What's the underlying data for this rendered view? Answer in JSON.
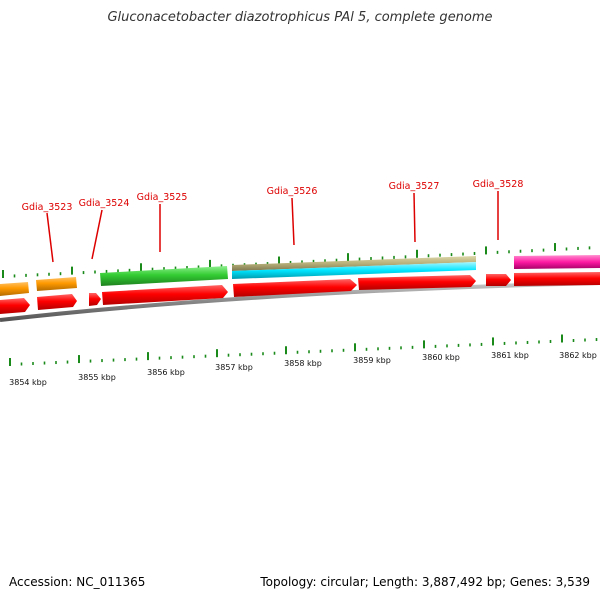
{
  "title": "Gluconacetobacter diazotrophicus PAl 5, complete genome",
  "footer": {
    "accession": "Accession: NC_011365",
    "summary": "Topology: circular; Length: 3,887,492 bp; Genes: 3,539"
  },
  "gene_labels": [
    "Gdia_3523",
    "Gdia_3524",
    "Gdia_3525",
    "Gdia_3526",
    "Gdia_3527",
    "Gdia_3528"
  ],
  "kbp_labels": [
    "3854 kbp",
    "3855 kbp",
    "3856 kbp",
    "3857 kbp",
    "3858 kbp",
    "3859 kbp",
    "3860 kbp",
    "3861 kbp",
    "3862 kbp"
  ],
  "colors": {
    "label_red": "#dd0000",
    "cds_red": "#ff0000",
    "orange": "#ff9900",
    "green": "#33cc33",
    "tan": "#b8b07a",
    "cyan": "#00e5ff",
    "magenta": "#ff1aa3",
    "tick_green": "#1a8a1a",
    "backbone_gray": "#888888"
  }
}
